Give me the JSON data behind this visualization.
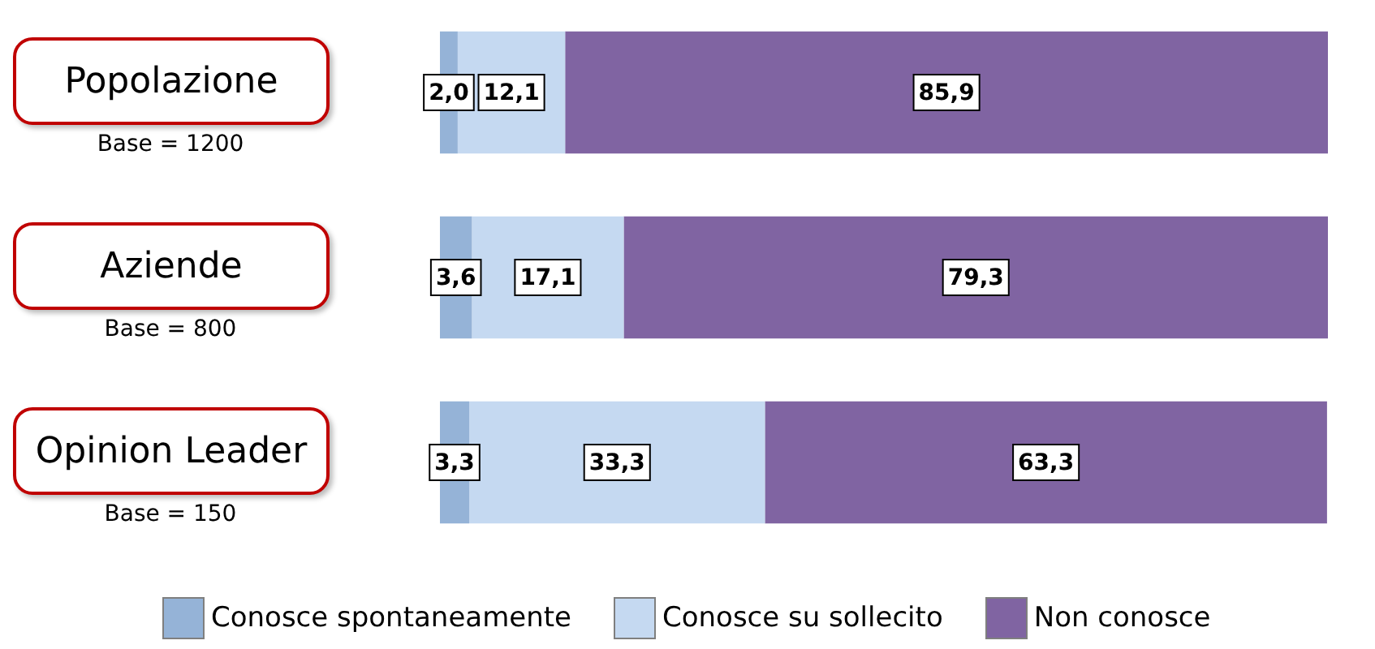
{
  "chart_data": {
    "type": "bar",
    "orientation": "horizontal",
    "stacked": true,
    "categories": [
      "Popolazione",
      "Aziende",
      "Opinion Leader"
    ],
    "series": [
      {
        "name": "Conosce spontaneamente",
        "color": "#95b3d7",
        "values": [
          2.0,
          3.6,
          3.3
        ],
        "value_labels": [
          "2,0",
          "3,6",
          "3,3"
        ]
      },
      {
        "name": "Conosce su sollecito",
        "color": "#c5d9f1",
        "values": [
          12.1,
          17.1,
          33.3
        ],
        "value_labels": [
          "12,1",
          "17,1",
          "33,3"
        ]
      },
      {
        "name": "Non conosce",
        "color": "#8064a2",
        "values": [
          85.9,
          79.3,
          63.3
        ],
        "value_labels": [
          "85,9",
          "79,3",
          "63,3"
        ]
      }
    ],
    "annotations": [
      "Base = 1200",
      "Base = 800",
      "Base = 150"
    ],
    "xlim": [
      0,
      100
    ],
    "legend": "bottom"
  }
}
